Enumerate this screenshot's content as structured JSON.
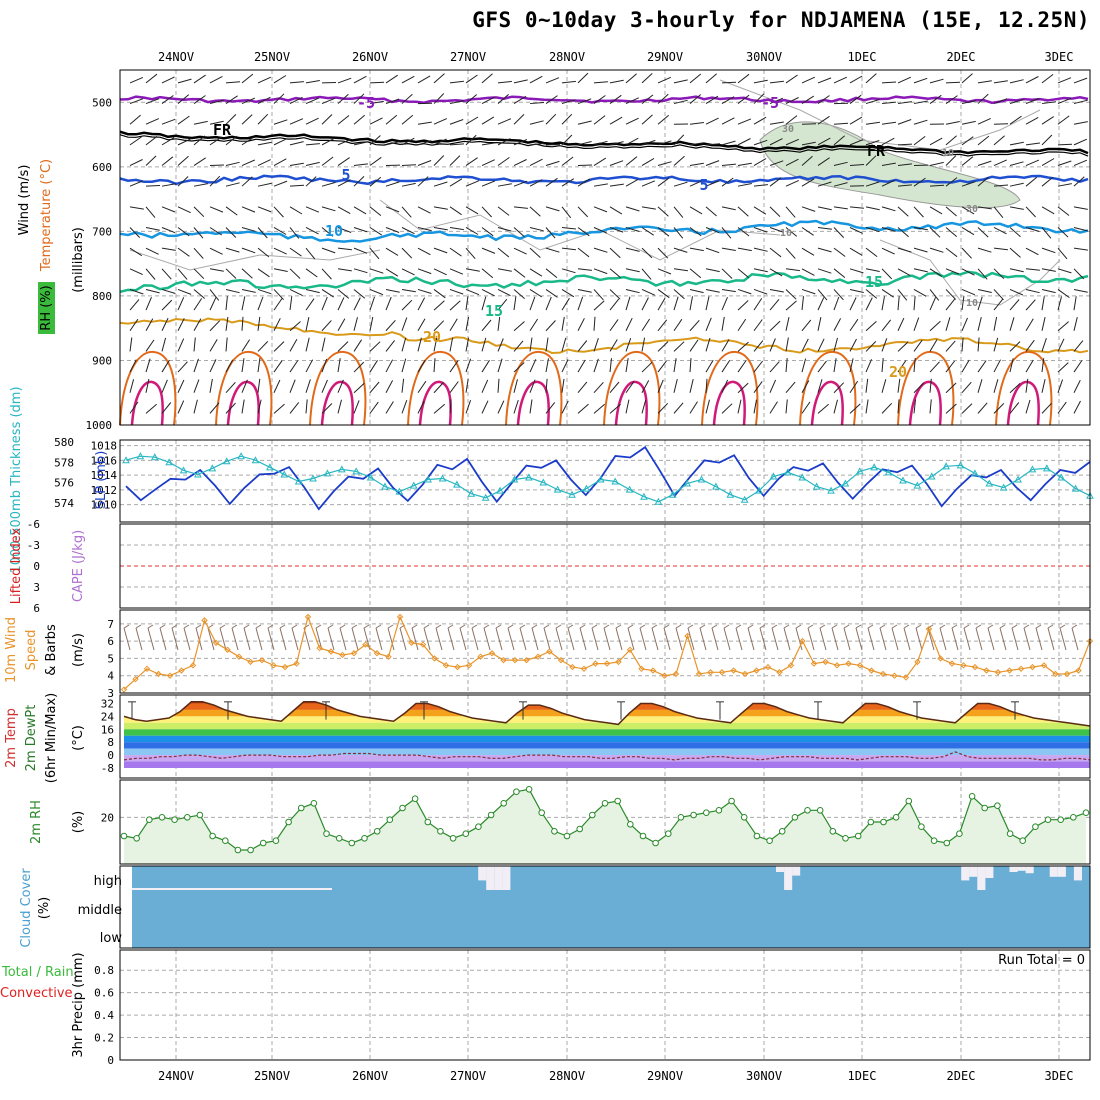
{
  "title": "GFS 0~10day 3-hourly for NDJAMENA (15E, 12.25N)",
  "dates": [
    "24NOV",
    "25NOV",
    "26NOV",
    "27NOV",
    "28NOV",
    "29NOV",
    "30NOV",
    "1DEC",
    "2DEC",
    "3DEC"
  ],
  "colors": {
    "temp_m5": "#8a19b8",
    "temp_fr": "#000000",
    "temp_5": "#1f4fd1",
    "temp_10": "#1696e0",
    "temp_15": "#18b889",
    "temp_20": "#d99a1a",
    "temp_25": "#e06a1a",
    "temp_30": "#d01a7a",
    "slp": "#1b3cc9",
    "thickness": "#27b6c2",
    "wind10": "#e8942a",
    "rh2m": "#2a8a2a",
    "cloud": "#6aaed6",
    "li_zero": "#e03030"
  },
  "panels": {
    "upper": {
      "ylabel_wind": "Wind (m/s)",
      "ylabel_temp": "Temperature (°C)",
      "ylabel_rh": "RH (%)",
      "ylabel_mb": "(millibars)",
      "yticks": [
        "500",
        "600",
        "700",
        "800",
        "900",
        "1000"
      ],
      "contour_labels": [
        "-5",
        "-5",
        "FR",
        "FR",
        "5",
        "5",
        "10",
        "15",
        "15",
        "20",
        "20",
        "30",
        "30",
        "10",
        "10",
        "10"
      ]
    },
    "slp": {
      "ylabel_thick": "1000-500mb Thickness (dm)",
      "ylabel_slp": "SLP (mb)",
      "left_ticks": [
        "580",
        "578",
        "576",
        "574"
      ],
      "right_ticks": [
        "1018",
        "1016",
        "1014",
        "1012",
        "1010"
      ]
    },
    "li": {
      "ylabel_li": "Lifted Index",
      "ylabel_cape": "CAPE (J/kg)",
      "ticks": [
        "-6",
        "-3",
        "0",
        "3",
        "6"
      ]
    },
    "wind10": {
      "ylabel_1": "10m Wind",
      "ylabel_2": "Speed",
      "ylabel_3": "& Barbs",
      "ylabel_unit": "(m/s)",
      "ticks": [
        "7",
        "6",
        "5",
        "4",
        "3"
      ]
    },
    "temp2m": {
      "ylabel_1": "2m Temp",
      "ylabel_2": "2m DewPt",
      "ylabel_3": "(6hr Min/Max)",
      "ylabel_unit": "(°C)",
      "ticks": [
        "32",
        "24",
        "16",
        "8",
        "0",
        "-8"
      ]
    },
    "rh2m": {
      "ylabel": "2m RH",
      "ylabel_unit": "(%)",
      "ticks": [
        "20"
      ]
    },
    "cloud": {
      "ylabel": "Cloud Cover",
      "ylabel_unit": "(%)",
      "levels": [
        "high",
        "middle",
        "low"
      ]
    },
    "precip": {
      "ylabel_1": "Total / Rain",
      "ylabel_2": "Convective",
      "ylabel_3": "3hr Precip (mm)",
      "ticks": [
        "0.8",
        "0.6",
        "0.4",
        "0.2",
        "0"
      ],
      "run_total": "Run Total = 0"
    }
  },
  "chart_data": [
    {
      "type": "line",
      "panel": "SLP and 1000-500mb thickness",
      "x_unit": "3-hourly steps from 23NOV 12Z",
      "series": [
        {
          "name": "SLP (mb)",
          "values": [
            1012.5,
            1010.6,
            1012.1,
            1013.5,
            1013.4,
            1014.7,
            1012.6,
            1010.1,
            1012.3,
            1014.1,
            1014.2,
            1015.1,
            1012.4,
            1009.4,
            1011.8,
            1013.8,
            1013.5,
            1014.9,
            1012.3,
            1010.5,
            1012.7,
            1015.4,
            1014.8,
            1016.2,
            1013.1,
            1010.4,
            1012.9,
            1015.3,
            1015.0,
            1016.0,
            1013.4,
            1011.3,
            1013.6,
            1016.6,
            1016.4,
            1017.8,
            1014.6,
            1011.2,
            1013.7,
            1016.0,
            1015.7,
            1016.7,
            1013.6,
            1011.2,
            1013.5,
            1015.1,
            1014.6,
            1015.6,
            1013.0,
            1010.8,
            1012.9,
            1014.8,
            1014.4,
            1015.3,
            1012.8,
            1009.8,
            1012.1,
            1014.0,
            1013.7,
            1014.7,
            1012.4,
            1010.6,
            1012.8,
            1014.7,
            1014.3,
            1015.8
          ]
        },
        {
          "name": "1000-500mb Thickness (dm)",
          "values": [
            578.2,
            578.6,
            578.5,
            578.0,
            577.2,
            576.8,
            577.4,
            578.1,
            578.6,
            578.2,
            577.5,
            576.8,
            576.1,
            576.4,
            576.9,
            577.3,
            577.1,
            576.5,
            575.6,
            575.1,
            575.7,
            576.3,
            576.4,
            575.8,
            574.9,
            574.5,
            575.2,
            576.3,
            576.5,
            576.0,
            575.3,
            574.8,
            575.4,
            576.3,
            576.1,
            575.3,
            574.6,
            574.1,
            574.8,
            575.9,
            576.3,
            575.6,
            574.8,
            574.3,
            575.2,
            576.6,
            577.0,
            576.5,
            575.6,
            575.2,
            575.9,
            577.1,
            577.5,
            577.0,
            576.2,
            575.7,
            576.6,
            577.6,
            577.7,
            576.9,
            575.9,
            575.5,
            576.3,
            577.3,
            577.4,
            576.5,
            575.4,
            574.7
          ]
        }
      ]
    },
    {
      "type": "line",
      "panel": "10m wind speed (m/s)",
      "series": [
        {
          "name": "10m Wind Speed",
          "values": [
            3.2,
            3.8,
            4.4,
            4.1,
            4.0,
            4.3,
            4.6,
            7.2,
            5.9,
            5.5,
            5.1,
            4.8,
            4.9,
            4.6,
            4.5,
            4.7,
            7.4,
            5.6,
            5.4,
            5.2,
            5.3,
            5.8,
            5.3,
            5.1,
            7.4,
            5.9,
            5.8,
            5.0,
            4.6,
            4.5,
            4.6,
            5.1,
            5.3,
            4.9,
            4.9,
            4.9,
            5.1,
            5.4,
            4.9,
            4.5,
            4.4,
            4.7,
            4.7,
            4.8,
            5.5,
            4.4,
            4.3,
            4.0,
            4.1,
            6.3,
            4.1,
            4.2,
            4.2,
            4.3,
            4.1,
            4.3,
            4.5,
            4.2,
            4.6,
            6.0,
            4.7,
            4.8,
            4.6,
            4.7,
            4.6,
            4.3,
            4.1,
            4.0,
            3.9,
            4.8,
            6.7,
            5.0,
            4.7,
            4.6,
            4.5,
            4.3,
            4.2,
            4.3,
            4.4,
            4.5,
            4.6,
            4.1,
            4.1,
            4.3,
            6.0
          ]
        }
      ]
    },
    {
      "type": "line",
      "panel": "2m RH (%)",
      "series": [
        {
          "name": "2m RH",
          "values": [
            12,
            11,
            19,
            20,
            19,
            20,
            21,
            12,
            10,
            6,
            6,
            9,
            10,
            18,
            24,
            26,
            13,
            11,
            9,
            11,
            14,
            19,
            24,
            28,
            18,
            14,
            11,
            13,
            16,
            21,
            26,
            31,
            32,
            22,
            14,
            12,
            15,
            21,
            26,
            27,
            17,
            12,
            9,
            13,
            20,
            21,
            22,
            23,
            27,
            20,
            12,
            10,
            14,
            20,
            23,
            23,
            14,
            11,
            12,
            18,
            18,
            20,
            27,
            16,
            10,
            9,
            13,
            29,
            24,
            25,
            13,
            10,
            16,
            19,
            19,
            20,
            22
          ]
        }
      ]
    },
    {
      "type": "line",
      "panel": "2m Temp / 2m DewPt (°C)",
      "series": [
        {
          "name": "2m Temp",
          "values": [
            24,
            22,
            21,
            22,
            23,
            27,
            33,
            33,
            31,
            28,
            26,
            24,
            23,
            22,
            21,
            27,
            33,
            33,
            31,
            28,
            26,
            24,
            23,
            22,
            21,
            26,
            32,
            32,
            30,
            27,
            25,
            23,
            22,
            21,
            20,
            26,
            31,
            31,
            29,
            26,
            24,
            22,
            21,
            20,
            19,
            26,
            32,
            32,
            30,
            27,
            25,
            23,
            22,
            21,
            20,
            26,
            32,
            32,
            30,
            27,
            25,
            23,
            22,
            21,
            20,
            26,
            32,
            32,
            30,
            27,
            25,
            23,
            22,
            21,
            20,
            26,
            32,
            32,
            30,
            27,
            25,
            23,
            22,
            21,
            20,
            19,
            18
          ]
        },
        {
          "name": "2m DewPt",
          "values": [
            -3,
            -2,
            -2,
            -1,
            -1,
            0,
            0,
            -1,
            -2,
            -1,
            0,
            0,
            0,
            -1,
            -1,
            -1,
            0,
            0,
            1,
            1,
            1,
            0,
            0,
            0,
            0,
            -1,
            -2,
            -1,
            -1,
            -1,
            -2,
            -2,
            -1,
            0,
            0,
            0,
            -1,
            -1,
            -1,
            -2,
            -2,
            -1,
            -1,
            -2,
            -2,
            -3,
            -2,
            -2,
            -1,
            -1,
            -2,
            -2,
            -3,
            -2,
            -1,
            -1,
            -1,
            -2,
            -2,
            -2,
            -3,
            -2,
            -1,
            -1,
            -1,
            -2,
            -2,
            -1,
            2,
            -1,
            -2,
            -2,
            -2,
            -2,
            -2,
            -3,
            -3,
            -2,
            -2,
            -3
          ]
        }
      ]
    },
    {
      "type": "bar",
      "panel": "Cloud cover (%) high/middle/low",
      "series": [
        {
          "name": "high",
          "values": [
            0,
            0,
            0,
            0,
            0,
            0,
            0,
            0,
            0,
            0,
            0,
            0,
            0,
            0,
            0,
            0,
            0,
            0,
            0,
            0,
            0,
            0,
            0,
            0,
            0,
            0,
            0,
            0,
            0,
            0,
            0,
            0,
            0,
            0,
            0,
            0,
            0,
            0,
            0,
            0,
            0,
            0,
            0,
            60,
            100,
            100,
            100,
            0,
            0,
            0,
            0,
            0,
            0,
            0,
            0,
            0,
            0,
            0,
            0,
            0,
            0,
            0,
            0,
            0,
            0,
            0,
            0,
            0,
            0,
            0,
            0,
            0,
            0,
            0,
            0,
            0,
            0,
            0,
            0,
            0,
            25,
            100,
            40,
            0,
            0,
            0,
            0,
            0,
            0,
            0,
            0,
            0,
            0,
            0,
            0,
            0,
            0,
            0,
            0,
            0,
            0,
            0,
            0,
            60,
            45,
            100,
            50,
            0,
            0,
            25,
            20,
            30,
            0,
            0,
            45,
            45,
            0,
            60,
            0
          ]
        },
        {
          "name": "middle",
          "values": [
            0,
            0,
            0
          ]
        },
        {
          "name": "low",
          "values": [
            0,
            0,
            0
          ]
        }
      ]
    },
    {
      "type": "bar",
      "panel": "3hr Precip (mm)",
      "ylim": [
        0,
        1
      ],
      "series": [
        {
          "name": "Total / Rain",
          "values": [
            0,
            0,
            0
          ]
        }
      ]
    }
  ]
}
